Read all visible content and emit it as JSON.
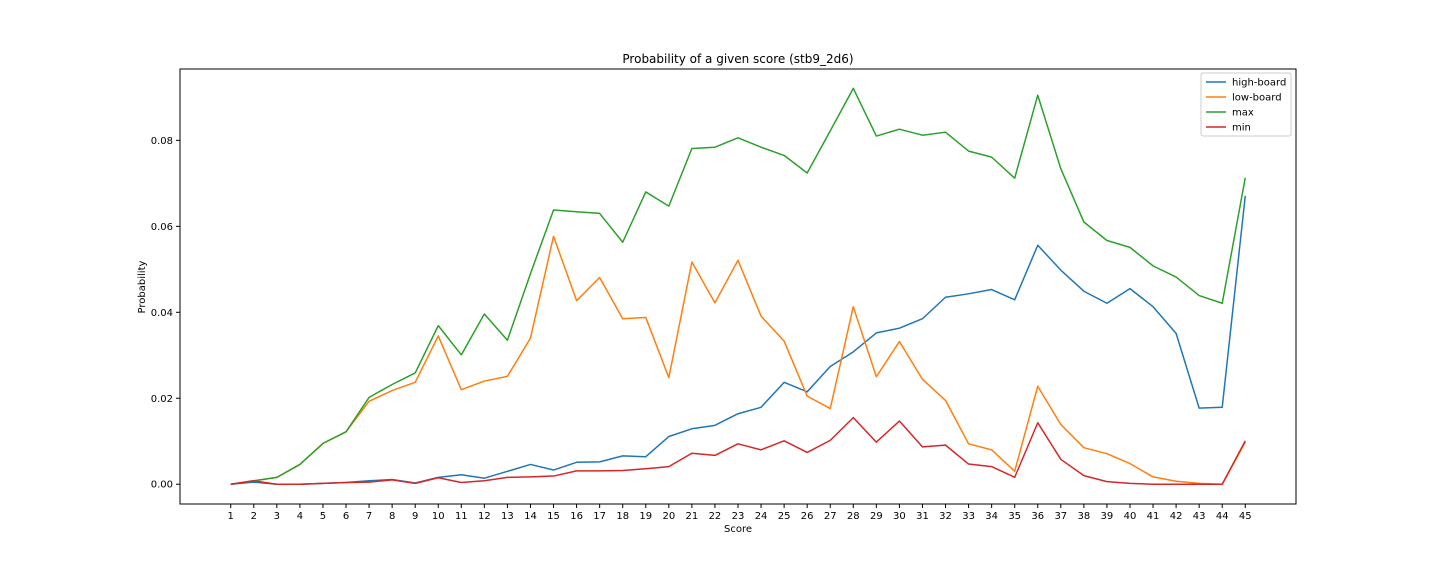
{
  "chart_data": {
    "type": "line",
    "title": "Probability of a given score (stb9_2d6)",
    "xlabel": "Score",
    "ylabel": "Probability",
    "x": [
      1,
      2,
      3,
      4,
      5,
      6,
      7,
      8,
      9,
      10,
      11,
      12,
      13,
      14,
      15,
      16,
      17,
      18,
      19,
      20,
      21,
      22,
      23,
      24,
      25,
      26,
      27,
      28,
      29,
      30,
      31,
      32,
      33,
      34,
      35,
      36,
      37,
      38,
      39,
      40,
      41,
      42,
      43,
      44,
      45
    ],
    "xlim": [
      -1.2,
      47.2
    ],
    "ylim": [
      -0.0046,
      0.0966
    ],
    "yticks": [
      0.0,
      0.02,
      0.04,
      0.06,
      0.08
    ],
    "ytick_labels": [
      "0.00",
      "0.02",
      "0.04",
      "0.06",
      "0.08"
    ],
    "grid": false,
    "legend_position": "top-right",
    "series": [
      {
        "name": "high-board",
        "color": "#1f77b4",
        "values": [
          0.0,
          0.0005,
          0.0,
          0.0,
          0.0002,
          0.0004,
          0.0008,
          0.0011,
          0.0003,
          0.0016,
          0.0022,
          0.0014,
          0.003,
          0.0046,
          0.0033,
          0.0051,
          0.0052,
          0.0066,
          0.0064,
          0.0111,
          0.0129,
          0.0137,
          0.0164,
          0.0179,
          0.0237,
          0.0215,
          0.0274,
          0.0308,
          0.0352,
          0.0363,
          0.0385,
          0.0435,
          0.0443,
          0.0453,
          0.0429,
          0.0556,
          0.0498,
          0.0449,
          0.0421,
          0.0455,
          0.0413,
          0.0351,
          0.0177,
          0.0179,
          0.0671
        ]
      },
      {
        "name": "low-board",
        "color": "#ff7f0e",
        "values": [
          0.0,
          0.0008,
          0.0016,
          0.0046,
          0.0095,
          0.0122,
          0.0193,
          0.0218,
          0.0237,
          0.0345,
          0.022,
          0.024,
          0.0251,
          0.034,
          0.0577,
          0.0427,
          0.0481,
          0.0385,
          0.0388,
          0.0248,
          0.0517,
          0.0422,
          0.0521,
          0.0391,
          0.0333,
          0.0205,
          0.0176,
          0.0413,
          0.025,
          0.0332,
          0.0244,
          0.0195,
          0.0094,
          0.008,
          0.003,
          0.0228,
          0.0139,
          0.0085,
          0.0071,
          0.0048,
          0.0017,
          0.0007,
          0.0002,
          0.0,
          0.0098
        ]
      },
      {
        "name": "max",
        "color": "#2ca02c",
        "values": [
          0.0,
          0.0008,
          0.0016,
          0.0046,
          0.0095,
          0.0122,
          0.0202,
          0.0232,
          0.0259,
          0.0369,
          0.0301,
          0.0396,
          0.0335,
          0.049,
          0.0638,
          0.0634,
          0.063,
          0.0563,
          0.068,
          0.0647,
          0.0781,
          0.0784,
          0.0806,
          0.0784,
          0.0765,
          0.0724,
          0.0822,
          0.0921,
          0.081,
          0.0826,
          0.0812,
          0.0819,
          0.0775,
          0.0761,
          0.0712,
          0.0905,
          0.0734,
          0.061,
          0.0567,
          0.0551,
          0.0508,
          0.0482,
          0.0439,
          0.0421,
          0.0713
        ]
      },
      {
        "name": "min",
        "color": "#d62728",
        "values": [
          0.0,
          0.0008,
          0.0,
          0.0,
          0.0002,
          0.0004,
          0.0005,
          0.001,
          0.0002,
          0.0015,
          0.0004,
          0.0008,
          0.0016,
          0.0017,
          0.0019,
          0.0031,
          0.0031,
          0.0032,
          0.0036,
          0.0041,
          0.0072,
          0.0067,
          0.0094,
          0.008,
          0.0101,
          0.0074,
          0.0102,
          0.0155,
          0.0098,
          0.0147,
          0.0087,
          0.0091,
          0.0047,
          0.0041,
          0.0016,
          0.0143,
          0.0058,
          0.002,
          0.0006,
          0.0002,
          0.0,
          0.0,
          0.0,
          0.0,
          0.0101
        ]
      }
    ]
  }
}
